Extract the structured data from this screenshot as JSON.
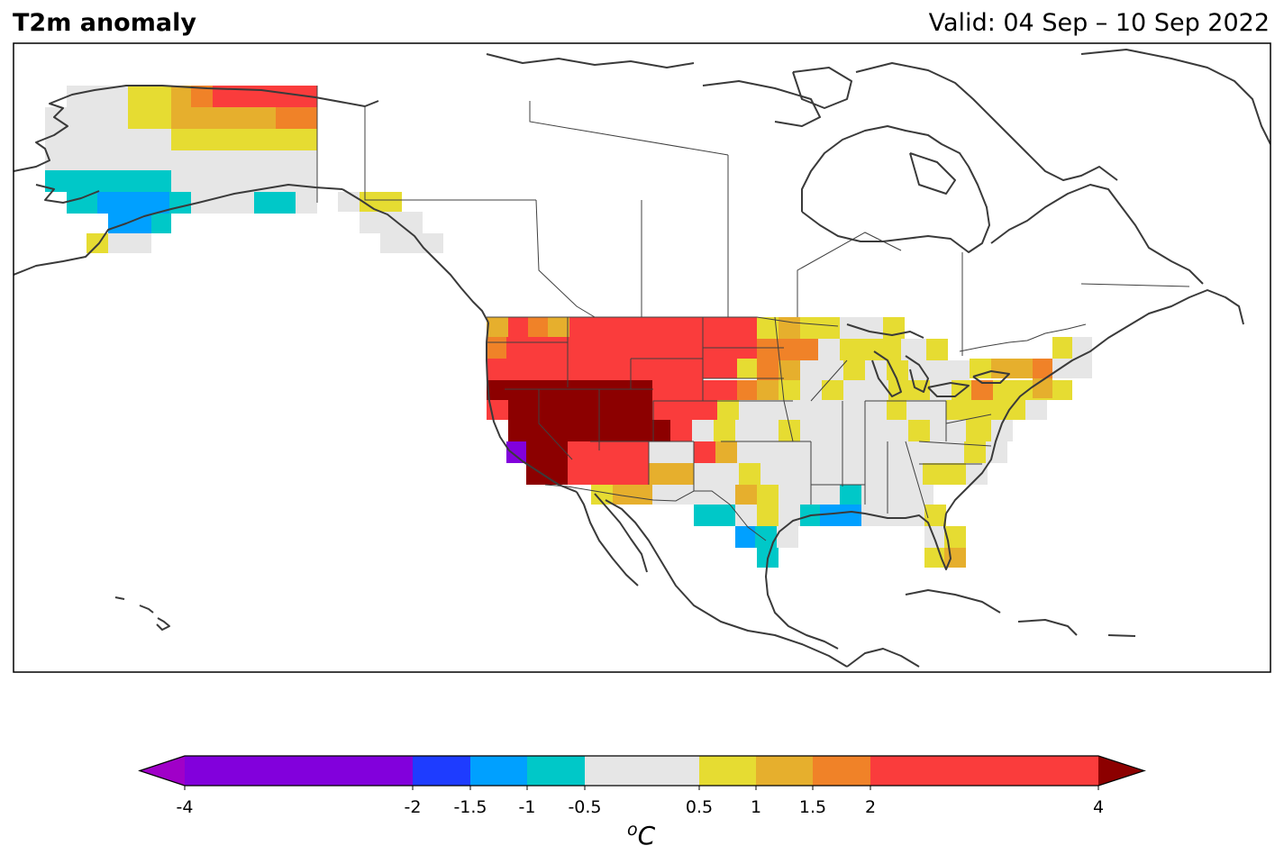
{
  "header": {
    "title": "T2m anomaly",
    "valid": "Valid: 04 Sep – 10 Sep 2022"
  },
  "colorbar": {
    "unit_sup": "o",
    "unit": "C",
    "ticks": [
      "-4",
      "-2",
      "-1.5",
      "-1",
      "-0.5",
      "0.5",
      "1",
      "1.5",
      "2",
      "4"
    ],
    "bins": [
      {
        "range": "< -4",
        "color": "#a000c8"
      },
      {
        "range": "-4 to -2",
        "color": "#8200dc"
      },
      {
        "range": "-2 to -1.5",
        "color": "#1e3cff"
      },
      {
        "range": "-1.5 to -1",
        "color": "#00a0ff"
      },
      {
        "range": "-1 to -0.5",
        "color": "#00c8c8"
      },
      {
        "range": "-0.5 to 0.5",
        "color": "#e6e6e6"
      },
      {
        "range": "0.5 to 1",
        "color": "#e6dc32"
      },
      {
        "range": "1 to 1.5",
        "color": "#e6af2d"
      },
      {
        "range": "1.5 to 2",
        "color": "#f08228"
      },
      {
        "range": "2 to 4",
        "color": "#fa3c3c"
      },
      {
        "range": "> 4",
        "color": "#8c0000"
      }
    ]
  },
  "map": {
    "region": "North America",
    "variable": "2 m temperature anomaly",
    "regions_shown": [
      {
        "name": "Desert Southwest / Great Basin",
        "category": "> 4"
      },
      {
        "name": "Pacific Northwest / Northern Rockies / Northern Plains",
        "category": "2 to 4"
      },
      {
        "name": "Southern California coast",
        "category": "-4 to -2"
      },
      {
        "name": "Texas / Louisiana Gulf coast",
        "category": "-1.5 to -0.5"
      },
      {
        "name": "Southwest Alaska",
        "category": "-1.5 to -0.5"
      },
      {
        "name": "Northern Alaska",
        "category": "1 to 4"
      },
      {
        "name": "Great Lakes / Northeast",
        "category": "0.5 to 1.5"
      },
      {
        "name": "Southeast US",
        "category": "-0.5 to 0.5"
      }
    ]
  }
}
